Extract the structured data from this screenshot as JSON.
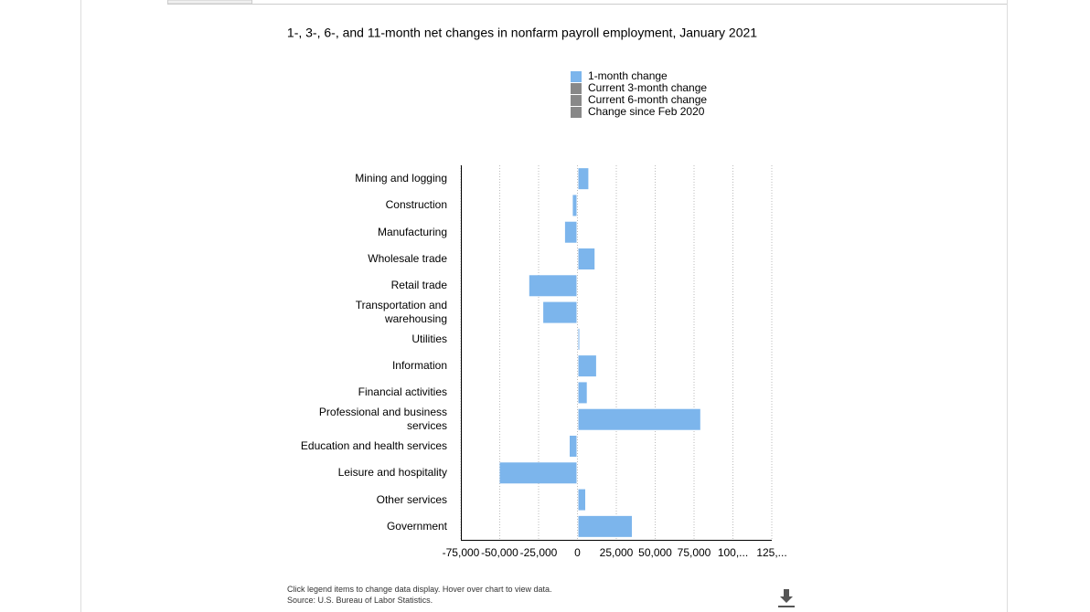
{
  "chart_data": {
    "type": "bar",
    "orientation": "horizontal",
    "title": "1-, 3-, 6-, and 11-month net changes in nonfarm payroll employment, January 2021",
    "categories": [
      "Mining and logging",
      "Construction",
      "Manufacturing",
      "Wholesale trade",
      "Retail trade",
      "Transportation and warehousing",
      "Utilities",
      "Information",
      "Financial activities",
      "Professional and business services",
      "Education and health services",
      "Leisure and hospitality",
      "Other services",
      "Government"
    ],
    "series": [
      {
        "name": "1-month change",
        "color": "#7cb5ec",
        "values": [
          7000,
          -3000,
          -8000,
          11000,
          -31000,
          -22000,
          1000,
          12000,
          6000,
          79000,
          -5000,
          -50000,
          5000,
          35000
        ]
      }
    ],
    "hidden_series": [
      {
        "name": "Current 3-month change",
        "color": "#888888"
      },
      {
        "name": "Current 6-month change",
        "color": "#888888"
      },
      {
        "name": "Change since Feb 2020",
        "color": "#888888"
      }
    ],
    "xlim": [
      -75000,
      125000
    ],
    "xticks": [
      {
        "value": -75000,
        "label": "-75,000"
      },
      {
        "value": -50000,
        "label": "-50,000"
      },
      {
        "value": -25000,
        "label": "-25,000"
      },
      0,
      {
        "value": 25000,
        "label": "25,000"
      },
      {
        "value": 50000,
        "label": "50,000"
      },
      {
        "value": 75000,
        "label": "75,000"
      },
      {
        "value": 100000,
        "label": "100,..."
      },
      {
        "value": 125000,
        "label": "125,..."
      }
    ],
    "grid": true
  },
  "footer": {
    "note": "Click legend items to change data display. Hover over chart to view data.",
    "source": "Source: U.S. Bureau of Labor Statistics."
  }
}
